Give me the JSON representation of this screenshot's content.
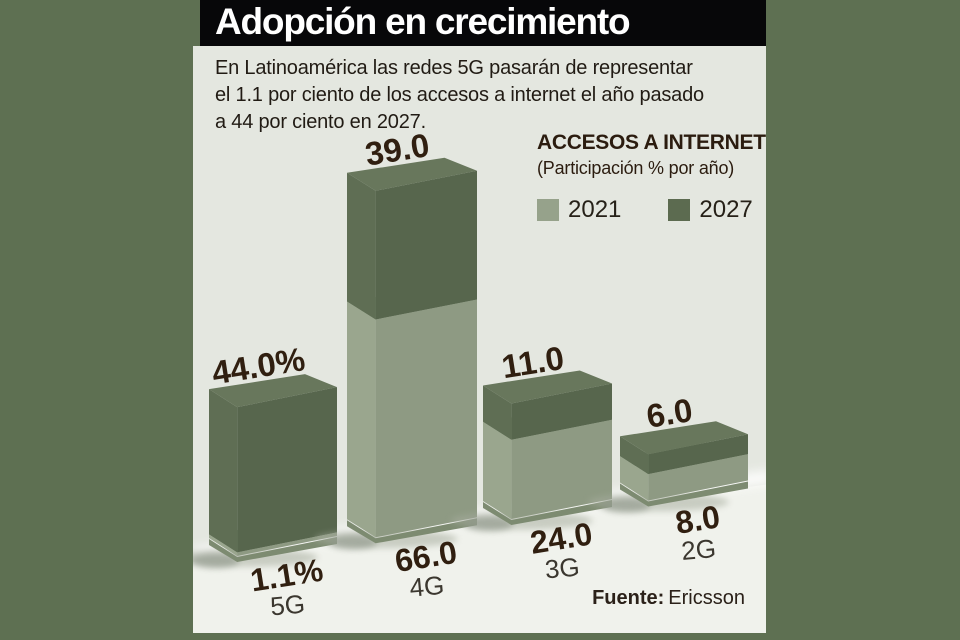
{
  "header": {
    "title": "Adopción en crecimiento"
  },
  "intro": {
    "lines": [
      "En Latinoamérica las redes 5G pasarán de representar",
      "el 1.1 por ciento de los accesos a internet el año pasado",
      "a 44 por ciento en 2027."
    ]
  },
  "legend": {
    "title": "ACCESOS A INTERNET",
    "subtitle": "(Participación % por año)",
    "items": [
      {
        "label": "2021",
        "color": "#96a28b"
      },
      {
        "label": "2027",
        "color": "#5c6b50"
      }
    ]
  },
  "source": {
    "label": "Fuente:",
    "value": "Ericsson"
  },
  "palette": {
    "frame_green": "#5e7052",
    "card_background": "#e4e7e0",
    "ground_band": "#f0f2ec",
    "title_bar": "#070709",
    "title_text": "#ffffff",
    "value_label_color": "#301f10",
    "category_label_color": "#3b372f"
  },
  "chart_data": {
    "type": "bar",
    "variant": "3d-stacked",
    "title": "ACCESOS A INTERNET",
    "subtitle": "(Participación % por año)",
    "categories": [
      "5G",
      "4G",
      "3G",
      "2G"
    ],
    "series": [
      {
        "name": "2021",
        "values": [
          1.1,
          66.0,
          24.0,
          8.0
        ],
        "value_labels": [
          "1.1%",
          "66.0",
          "24.0",
          "8.0"
        ],
        "label_position": "below",
        "colors": {
          "front": "#8e9a83",
          "side": "#9aa68e",
          "top": "#9dab92"
        }
      },
      {
        "name": "2027",
        "values": [
          44.0,
          39.0,
          11.0,
          6.0
        ],
        "value_labels": [
          "44.0%",
          "39.0",
          "11.0",
          "6.0"
        ],
        "label_position": "above",
        "colors": {
          "front": "#57664d",
          "side": "#5f6e54",
          "top": "#68775c"
        }
      }
    ],
    "bar_bottom_color": "#7d8b71",
    "legend_position": "top-right",
    "axes": "none",
    "grid": false
  }
}
